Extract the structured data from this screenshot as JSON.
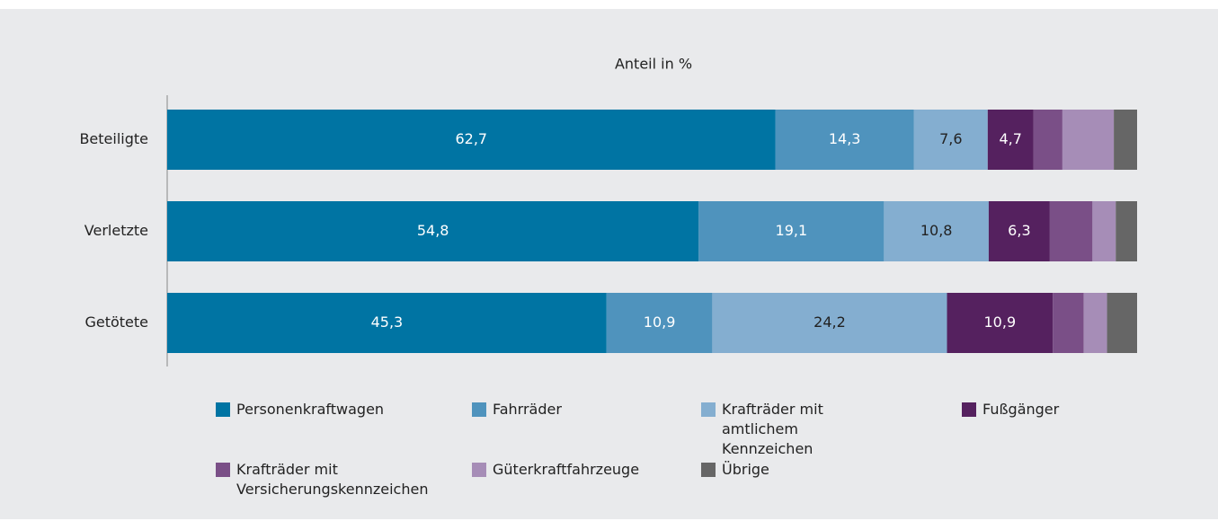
{
  "chart_data": {
    "type": "stacked_barh",
    "title": "Anteil in %",
    "categories": [
      "Beteiligte",
      "Verletzte",
      "Getötete"
    ],
    "xlim": [
      0,
      100
    ],
    "series": [
      {
        "name": "Personenkraftwagen",
        "color": "#0074a3",
        "values": [
          62.7,
          54.8,
          45.3
        ],
        "value_labels": [
          "62,7",
          "54,8",
          "45,3"
        ]
      },
      {
        "name": "Fahrräder",
        "color": "#4f93bd",
        "values": [
          14.3,
          19.1,
          10.9
        ],
        "value_labels": [
          "14,3",
          "19,1",
          "10,9"
        ]
      },
      {
        "name": "Krafträder mit amtlichem Kennzeichen",
        "color": "#84aed0",
        "values": [
          7.6,
          10.8,
          24.2
        ],
        "value_labels": [
          "7,6",
          "10,8",
          "24,2"
        ]
      },
      {
        "name": "Fußgänger",
        "color": "#55215f",
        "values": [
          4.7,
          6.3,
          10.9
        ],
        "value_labels": [
          "4,7",
          "6,3",
          "10,9"
        ]
      },
      {
        "name": "Krafträder mit Versicherungskennzeichen",
        "color": "#7a4f87",
        "values": [
          3.0,
          4.4,
          3.2
        ],
        "value_labels": [
          null,
          null,
          null
        ]
      },
      {
        "name": "Güterkraftfahrzeuge",
        "color": "#a68db7",
        "values": [
          5.3,
          2.4,
          2.4
        ],
        "value_labels": [
          null,
          null,
          null
        ]
      },
      {
        "name": "Übrige",
        "color": "#666666",
        "values": [
          2.4,
          2.2,
          3.1
        ],
        "value_labels": [
          null,
          null,
          null
        ]
      }
    ]
  }
}
